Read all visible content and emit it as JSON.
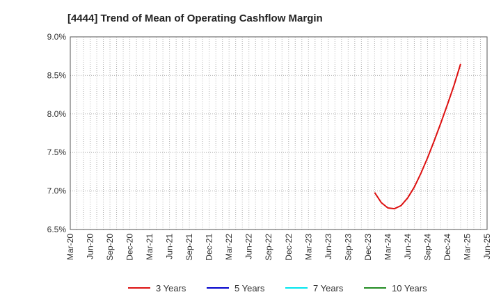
{
  "chart_data": {
    "type": "line",
    "title": "[4444]  Trend of Mean of Operating Cashflow Margin",
    "xlabel": "",
    "ylabel": "",
    "x_ticks": [
      "Mar-20",
      "Jun-20",
      "Sep-20",
      "Dec-20",
      "Mar-21",
      "Jun-21",
      "Sep-21",
      "Dec-21",
      "Mar-22",
      "Jun-22",
      "Sep-22",
      "Dec-22",
      "Mar-23",
      "Jun-23",
      "Sep-23",
      "Dec-23",
      "Mar-24",
      "Jun-24",
      "Sep-24",
      "Dec-24",
      "Mar-25",
      "Jun-25"
    ],
    "y_ticks": [
      "6.5%",
      "7.0%",
      "7.5%",
      "8.0%",
      "8.5%",
      "9.0%"
    ],
    "ylim": [
      6.5,
      9.0
    ],
    "grid": true,
    "legend_position": "bottom",
    "series": [
      {
        "name": "3 Years",
        "color": "#dd1111",
        "x": [
          "Jan-24",
          "Feb-24",
          "Mar-24",
          "Apr-24",
          "May-24",
          "Jun-24",
          "Jul-24",
          "Aug-24",
          "Sep-24",
          "Oct-24",
          "Nov-24",
          "Dec-24",
          "Jan-25",
          "Feb-25",
          "Mar-25"
        ],
        "values": [
          6.98,
          6.85,
          6.78,
          6.77,
          6.81,
          6.91,
          7.05,
          7.23,
          7.43,
          7.65,
          7.88,
          8.12,
          8.37,
          8.65,
          null
        ]
      },
      {
        "name": "5 Years",
        "color": "#0000cc",
        "x": [],
        "values": []
      },
      {
        "name": "7 Years",
        "color": "#00e5ee",
        "x": [],
        "values": []
      },
      {
        "name": "10 Years",
        "color": "#228b22",
        "x": [],
        "values": []
      }
    ]
  }
}
